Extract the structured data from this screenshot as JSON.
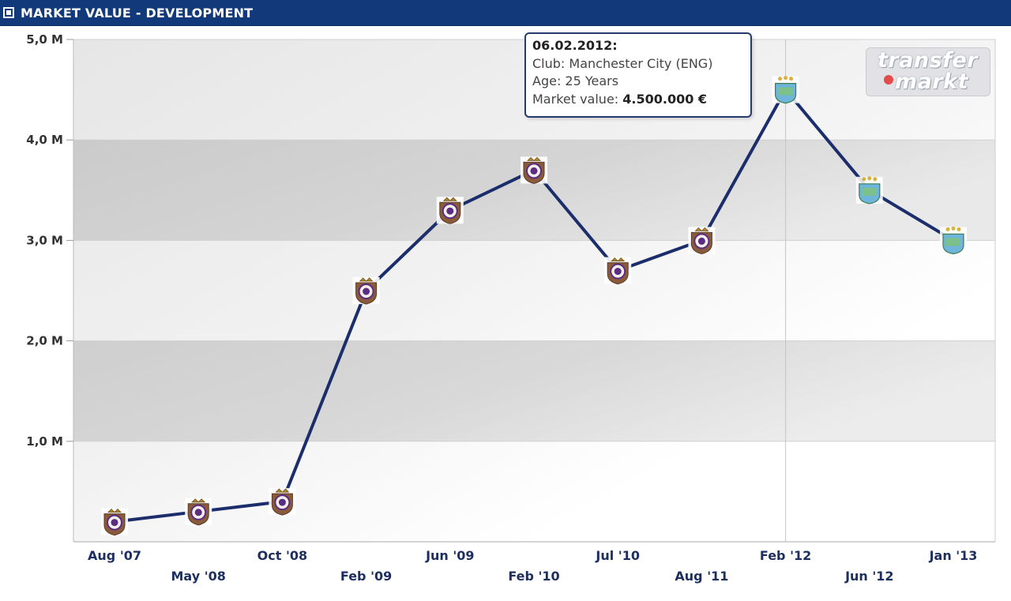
{
  "header": {
    "title": "MARKET VALUE - DEVELOPMENT",
    "icon": "square-bullet-icon"
  },
  "tooltip": {
    "date": "06.02.2012:",
    "club": "Club: Manchester City (ENG)",
    "age": "Age: 25 Years",
    "market_value_label": "Market value: ",
    "market_value": "4.500.000 €"
  },
  "watermark": {
    "line1": "transfer",
    "line2": "markt"
  },
  "colors": {
    "header_bg": "#123a7a",
    "line": "#1b2e6b",
    "band_dark": "#c8c8c8",
    "band_mid": "#dcdcdc",
    "marker_club_a": "#5a2d82",
    "marker_club_b": "#6fb4da"
  },
  "chart_data": {
    "type": "line",
    "ylim": [
      0,
      5000000
    ],
    "y_ticks": [
      {
        "value": 1000000,
        "label": "1,0 M"
      },
      {
        "value": 2000000,
        "label": "2,0 M"
      },
      {
        "value": 3000000,
        "label": "3,0 M"
      },
      {
        "value": 4000000,
        "label": "4,0 M"
      },
      {
        "value": 5000000,
        "label": "5,0 M"
      }
    ],
    "categories": [
      "Aug '07",
      "May '08",
      "Oct '08",
      "Feb '09",
      "Jun '09",
      "Feb '10",
      "Jul '10",
      "Aug '11",
      "Feb '12",
      "Jun '12",
      "Jan '13"
    ],
    "x_tick_rows": [
      0,
      1,
      0,
      1,
      0,
      1,
      0,
      1,
      0,
      1,
      0
    ],
    "series": [
      {
        "values": [
          200000,
          300000,
          400000,
          2500000,
          3300000,
          3700000,
          2700000,
          3000000,
          4500000,
          3500000,
          3000000
        ],
        "markers": [
          "club-crest-a-icon",
          "club-crest-a-icon",
          "club-crest-a-icon",
          "club-crest-a-icon",
          "club-crest-a-icon",
          "club-crest-a-icon",
          "club-crest-a-icon",
          "club-crest-a-icon",
          "club-crest-b-icon",
          "club-crest-b-icon",
          "club-crest-b-icon"
        ]
      }
    ],
    "highlighted_index": 8,
    "grid": true
  }
}
